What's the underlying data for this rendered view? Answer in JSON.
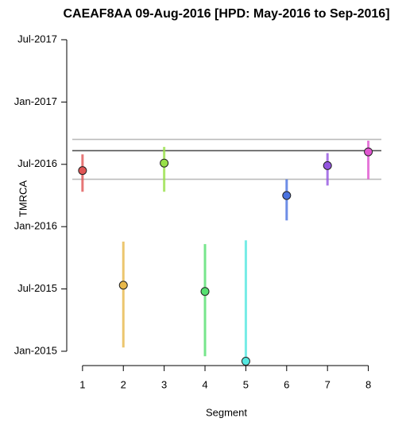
{
  "chart_data": {
    "type": "errorbar",
    "title": "CAEAF8AA 09-Aug-2016 [HPD: May-2016 to Sep-2016]",
    "xlabel": "Segment",
    "ylabel": "TMRCA",
    "x": [
      1,
      2,
      3,
      4,
      5,
      6,
      7,
      8
    ],
    "values": [
      2016.45,
      2015.53,
      2016.51,
      2015.48,
      2014.92,
      2016.25,
      2016.49,
      2016.6
    ],
    "lower": [
      2016.28,
      2015.03,
      2016.28,
      2014.96,
      2014.92,
      2016.05,
      2016.33,
      2016.38
    ],
    "upper": [
      2016.58,
      2015.88,
      2016.64,
      2015.86,
      2015.89,
      2016.38,
      2016.59,
      2016.69
    ],
    "colors": [
      "#e05555",
      "#e8b84a",
      "#98e048",
      "#55e070",
      "#55e8e0",
      "#4a72e0",
      "#9455e0",
      "#e055d0"
    ],
    "reference_lines": [
      {
        "value": 2016.61,
        "color": "#555555"
      },
      {
        "value": 2016.7,
        "color": "#bbbbbb"
      },
      {
        "value": 2016.38,
        "color": "#bbbbbb"
      }
    ],
    "xlim": [
      0.75,
      8.3
    ],
    "xticks": [
      1,
      2,
      3,
      4,
      5,
      6,
      7,
      8
    ],
    "ylim": [
      2014.88,
      2017.6
    ],
    "yticks": [
      {
        "value": 2015.0,
        "label": "Jan-2015"
      },
      {
        "value": 2015.5,
        "label": "Jul-2015"
      },
      {
        "value": 2016.0,
        "label": "Jan-2016"
      },
      {
        "value": 2016.5,
        "label": "Jul-2016"
      },
      {
        "value": 2017.0,
        "label": "Jan-2017"
      },
      {
        "value": 2017.5,
        "label": "Jul-2017"
      }
    ]
  }
}
